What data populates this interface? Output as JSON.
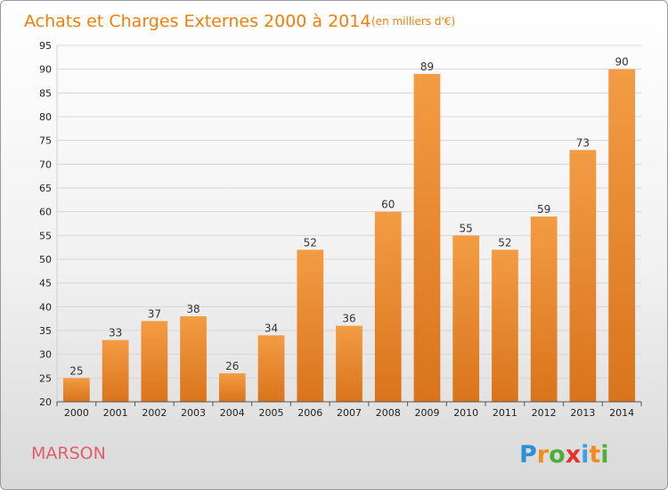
{
  "chart_data": {
    "type": "bar",
    "title": "Achats et Charges Externes 2000 à 2014",
    "subtitle": "(en milliers d'€)",
    "categories": [
      "2000",
      "2001",
      "2002",
      "2003",
      "2004",
      "2005",
      "2006",
      "2007",
      "2008",
      "2009",
      "2010",
      "2011",
      "2012",
      "2013",
      "2014"
    ],
    "values": [
      25,
      33,
      37,
      38,
      26,
      34,
      52,
      36,
      60,
      89,
      55,
      52,
      59,
      73,
      90
    ],
    "xlabel": "",
    "ylabel": "",
    "ylim": [
      20,
      95
    ],
    "yticks": [
      "20",
      "25",
      "30",
      "35",
      "40",
      "45",
      "50",
      "55",
      "60",
      "65",
      "70",
      "75",
      "80",
      "85",
      "90",
      "95"
    ],
    "grid": true,
    "bar_color": "#f39c44",
    "bar_color_dark": "#d9741c"
  },
  "footer": {
    "commune": "MARSON",
    "logo_letters": [
      "P",
      "r",
      "o",
      "x",
      "i",
      "t",
      "i"
    ],
    "logo_colors": [
      "#2f8fd6",
      "#f28c1a",
      "#4caf3a",
      "#e0312f",
      "#3aa0e0",
      "#f28c1a",
      "#4caf3a"
    ]
  }
}
